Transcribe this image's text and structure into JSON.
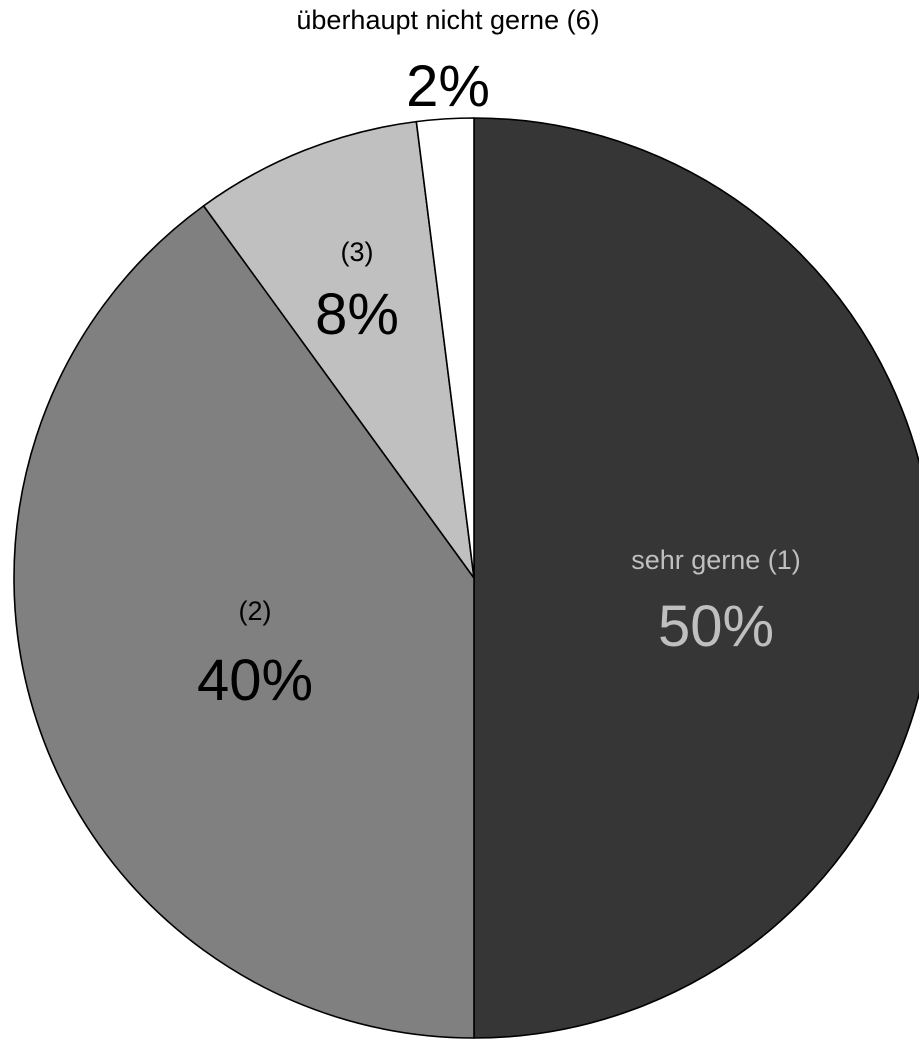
{
  "chart_data": {
    "type": "pie",
    "start_angle_deg": 0,
    "direction": "clockwise",
    "slices": [
      {
        "label": "sehr gerne (1)",
        "pct_label": "50%",
        "value": 50,
        "color": "#363636",
        "label_color": "#bfbfbf"
      },
      {
        "label": "(2)",
        "pct_label": "40%",
        "value": 40,
        "color": "#808080",
        "label_color": "#000000"
      },
      {
        "label": "(3)",
        "pct_label": "8%",
        "value": 8,
        "color": "#c0c0c0",
        "label_color": "#000000"
      },
      {
        "label": "überhaupt nicht gerne (6)",
        "pct_label": "2%",
        "value": 2,
        "color": "#ffffff",
        "label_color": "#000000"
      }
    ]
  }
}
